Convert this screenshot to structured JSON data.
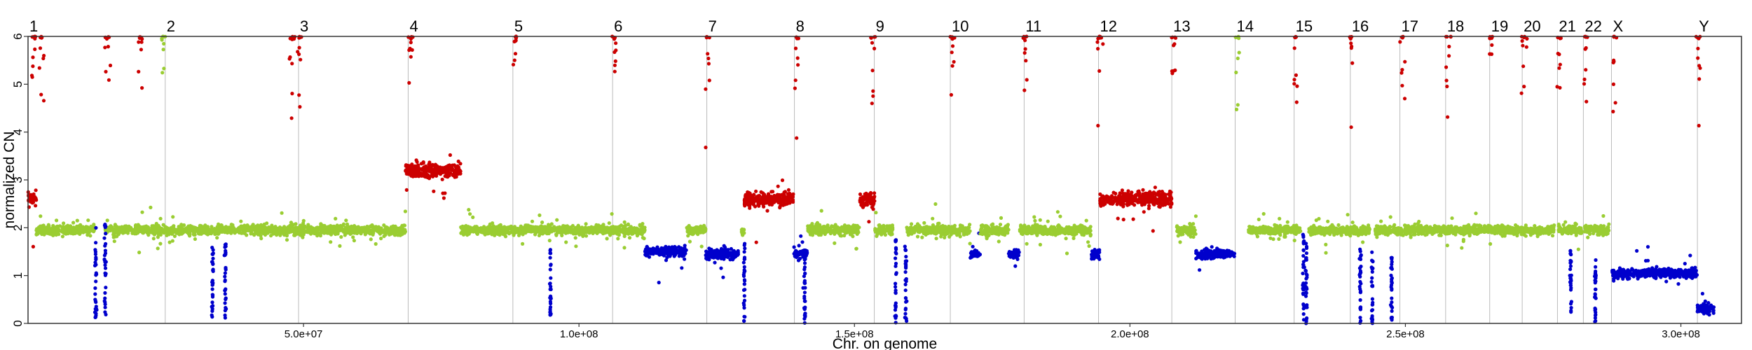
{
  "chart_data": {
    "type": "scatter",
    "title": "",
    "xlabel": "Chr. on genome",
    "ylabel": "normalized CN",
    "xlim": [
      0,
      311000000
    ],
    "ylim": [
      0,
      6
    ],
    "yticks": [
      0,
      1,
      2,
      3,
      4,
      5,
      6
    ],
    "xticks": [
      {
        "value": 50000000,
        "label": "5.0e+07"
      },
      {
        "value": 100000000,
        "label": "1.0e+08"
      },
      {
        "value": 150000000,
        "label": "1.5e+08"
      },
      {
        "value": 200000000,
        "label": "2.0e+08"
      },
      {
        "value": 250000000,
        "label": "2.5e+08"
      },
      {
        "value": 300000000,
        "label": "3.0e+08"
      }
    ],
    "grid": "vertical lines at chromosome boundaries",
    "colors": {
      "normal": "#9ACD32",
      "gain": "#CC0000",
      "loss": "#0000CC",
      "boundary": "#bbbbbb",
      "frame": "#333333"
    },
    "chromosomes": [
      {
        "label": "1",
        "start": 0,
        "end": 24900000
      },
      {
        "label": "2",
        "start": 24900000,
        "end": 49100000
      },
      {
        "label": "3",
        "start": 49100000,
        "end": 69000000
      },
      {
        "label": "4",
        "start": 69000000,
        "end": 88000000
      },
      {
        "label": "5",
        "start": 88000000,
        "end": 106100000
      },
      {
        "label": "6",
        "start": 106100000,
        "end": 123200000
      },
      {
        "label": "7",
        "start": 123200000,
        "end": 139100000
      },
      {
        "label": "8",
        "start": 139100000,
        "end": 153600000
      },
      {
        "label": "9",
        "start": 153600000,
        "end": 167400000
      },
      {
        "label": "10",
        "start": 167400000,
        "end": 180800000
      },
      {
        "label": "11",
        "start": 180800000,
        "end": 194300000
      },
      {
        "label": "12",
        "start": 194300000,
        "end": 207600000
      },
      {
        "label": "13",
        "start": 207600000,
        "end": 219100000
      },
      {
        "label": "14",
        "start": 219100000,
        "end": 229800000
      },
      {
        "label": "15",
        "start": 229800000,
        "end": 240000000
      },
      {
        "label": "16",
        "start": 240000000,
        "end": 249000000
      },
      {
        "label": "17",
        "start": 249000000,
        "end": 257300000
      },
      {
        "label": "18",
        "start": 257300000,
        "end": 265300000
      },
      {
        "label": "19",
        "start": 265300000,
        "end": 271200000
      },
      {
        "label": "20",
        "start": 271200000,
        "end": 277600000
      },
      {
        "label": "21",
        "start": 277600000,
        "end": 282300000
      },
      {
        "label": "22",
        "start": 282300000,
        "end": 287400000
      },
      {
        "label": "X",
        "start": 287400000,
        "end": 303000000
      },
      {
        "label": "Y",
        "start": 303000000,
        "end": 311000000
      }
    ],
    "segments": [
      {
        "start": 0,
        "end": 1500000,
        "cn": 2.6,
        "status": "gain"
      },
      {
        "start": 1500000,
        "end": 12000000,
        "cn": 1.95,
        "status": "normal"
      },
      {
        "start": 14000000,
        "end": 68500000,
        "cn": 1.95,
        "status": "normal"
      },
      {
        "start": 68500000,
        "end": 78500000,
        "cn": 3.2,
        "status": "gain"
      },
      {
        "start": 78500000,
        "end": 112000000,
        "cn": 1.95,
        "status": "normal"
      },
      {
        "start": 112000000,
        "end": 119500000,
        "cn": 1.5,
        "status": "loss"
      },
      {
        "start": 119500000,
        "end": 123000000,
        "cn": 1.95,
        "status": "normal"
      },
      {
        "start": 123000000,
        "end": 129000000,
        "cn": 1.45,
        "status": "loss"
      },
      {
        "start": 129500000,
        "end": 130000000,
        "cn": 1.95,
        "status": "normal"
      },
      {
        "start": 130000000,
        "end": 139000000,
        "cn": 2.6,
        "status": "gain"
      },
      {
        "start": 139000000,
        "end": 141500000,
        "cn": 1.45,
        "status": "loss"
      },
      {
        "start": 141500000,
        "end": 151000000,
        "cn": 1.95,
        "status": "normal"
      },
      {
        "start": 151000000,
        "end": 153700000,
        "cn": 2.6,
        "status": "gain"
      },
      {
        "start": 153700000,
        "end": 157000000,
        "cn": 1.95,
        "status": "normal"
      },
      {
        "start": 159500000,
        "end": 171000000,
        "cn": 1.95,
        "status": "normal"
      },
      {
        "start": 171000000,
        "end": 172800000,
        "cn": 1.45,
        "status": "loss"
      },
      {
        "start": 172800000,
        "end": 178000000,
        "cn": 1.95,
        "status": "normal"
      },
      {
        "start": 178000000,
        "end": 180000000,
        "cn": 1.45,
        "status": "loss"
      },
      {
        "start": 180000000,
        "end": 193000000,
        "cn": 1.95,
        "status": "normal"
      },
      {
        "start": 193000000,
        "end": 194500000,
        "cn": 1.45,
        "status": "loss"
      },
      {
        "start": 194500000,
        "end": 207600000,
        "cn": 2.6,
        "status": "gain"
      },
      {
        "start": 208500000,
        "end": 212000000,
        "cn": 1.95,
        "status": "normal"
      },
      {
        "start": 212000000,
        "end": 219000000,
        "cn": 1.45,
        "status": "loss"
      },
      {
        "start": 221500000,
        "end": 231000000,
        "cn": 1.95,
        "status": "normal"
      },
      {
        "start": 232500000,
        "end": 243500000,
        "cn": 1.95,
        "status": "normal"
      },
      {
        "start": 244500000,
        "end": 277000000,
        "cn": 1.95,
        "status": "normal"
      },
      {
        "start": 277800000,
        "end": 282000000,
        "cn": 1.95,
        "status": "normal"
      },
      {
        "start": 282500000,
        "end": 287000000,
        "cn": 1.95,
        "status": "normal"
      },
      {
        "start": 287500000,
        "end": 303000000,
        "cn": 1.05,
        "status": "loss"
      },
      {
        "start": 303000000,
        "end": 306000000,
        "cn": 0.3,
        "status": "loss"
      }
    ],
    "drops": [
      {
        "x": 12300000,
        "from": 0.1,
        "to": 2.0
      },
      {
        "x": 14000000,
        "from": 0.1,
        "to": 2.2
      },
      {
        "x": 33500000,
        "from": 0.1,
        "to": 1.6
      },
      {
        "x": 35800000,
        "from": 0.1,
        "to": 1.8
      },
      {
        "x": 94800000,
        "from": 0.1,
        "to": 1.6
      },
      {
        "x": 130000000,
        "from": 0.0,
        "to": 1.8
      },
      {
        "x": 141000000,
        "from": 0.0,
        "to": 1.5
      },
      {
        "x": 157500000,
        "from": 0.0,
        "to": 1.8
      },
      {
        "x": 159300000,
        "from": 0.0,
        "to": 1.7
      },
      {
        "x": 231500000,
        "from": 0.0,
        "to": 1.9
      },
      {
        "x": 232000000,
        "from": 0.0,
        "to": 1.7
      },
      {
        "x": 241800000,
        "from": 0.0,
        "to": 1.6
      },
      {
        "x": 244000000,
        "from": 0.0,
        "to": 1.5
      },
      {
        "x": 247500000,
        "from": 0.0,
        "to": 1.4
      },
      {
        "x": 280000000,
        "from": 0.0,
        "to": 1.6
      },
      {
        "x": 284500000,
        "from": 0.0,
        "to": 1.4
      }
    ],
    "outliers_top": [
      {
        "x": 1000000,
        "status": "gain"
      },
      {
        "x": 2500000,
        "status": "gain"
      },
      {
        "x": 14500000,
        "status": "gain"
      },
      {
        "x": 20500000,
        "status": "gain"
      },
      {
        "x": 24500000,
        "status": "normal"
      },
      {
        "x": 48000000,
        "status": "gain"
      },
      {
        "x": 49300000,
        "status": "gain"
      },
      {
        "x": 69500000,
        "status": "gain"
      },
      {
        "x": 88500000,
        "status": "gain"
      },
      {
        "x": 106500000,
        "status": "gain"
      },
      {
        "x": 123500000,
        "status": "gain"
      },
      {
        "x": 139500000,
        "status": "gain"
      },
      {
        "x": 153300000,
        "status": "gain"
      },
      {
        "x": 167800000,
        "status": "gain"
      },
      {
        "x": 181000000,
        "status": "gain"
      },
      {
        "x": 194500000,
        "status": "gain"
      },
      {
        "x": 208000000,
        "status": "gain"
      },
      {
        "x": 219500000,
        "status": "normal"
      },
      {
        "x": 230000000,
        "status": "gain"
      },
      {
        "x": 240200000,
        "status": "gain"
      },
      {
        "x": 249500000,
        "status": "gain"
      },
      {
        "x": 257800000,
        "status": "gain"
      },
      {
        "x": 265600000,
        "status": "gain"
      },
      {
        "x": 271500000,
        "status": "gain"
      },
      {
        "x": 277900000,
        "status": "gain"
      },
      {
        "x": 282600000,
        "status": "gain"
      },
      {
        "x": 287800000,
        "status": "gain"
      },
      {
        "x": 303300000,
        "status": "gain"
      }
    ]
  }
}
